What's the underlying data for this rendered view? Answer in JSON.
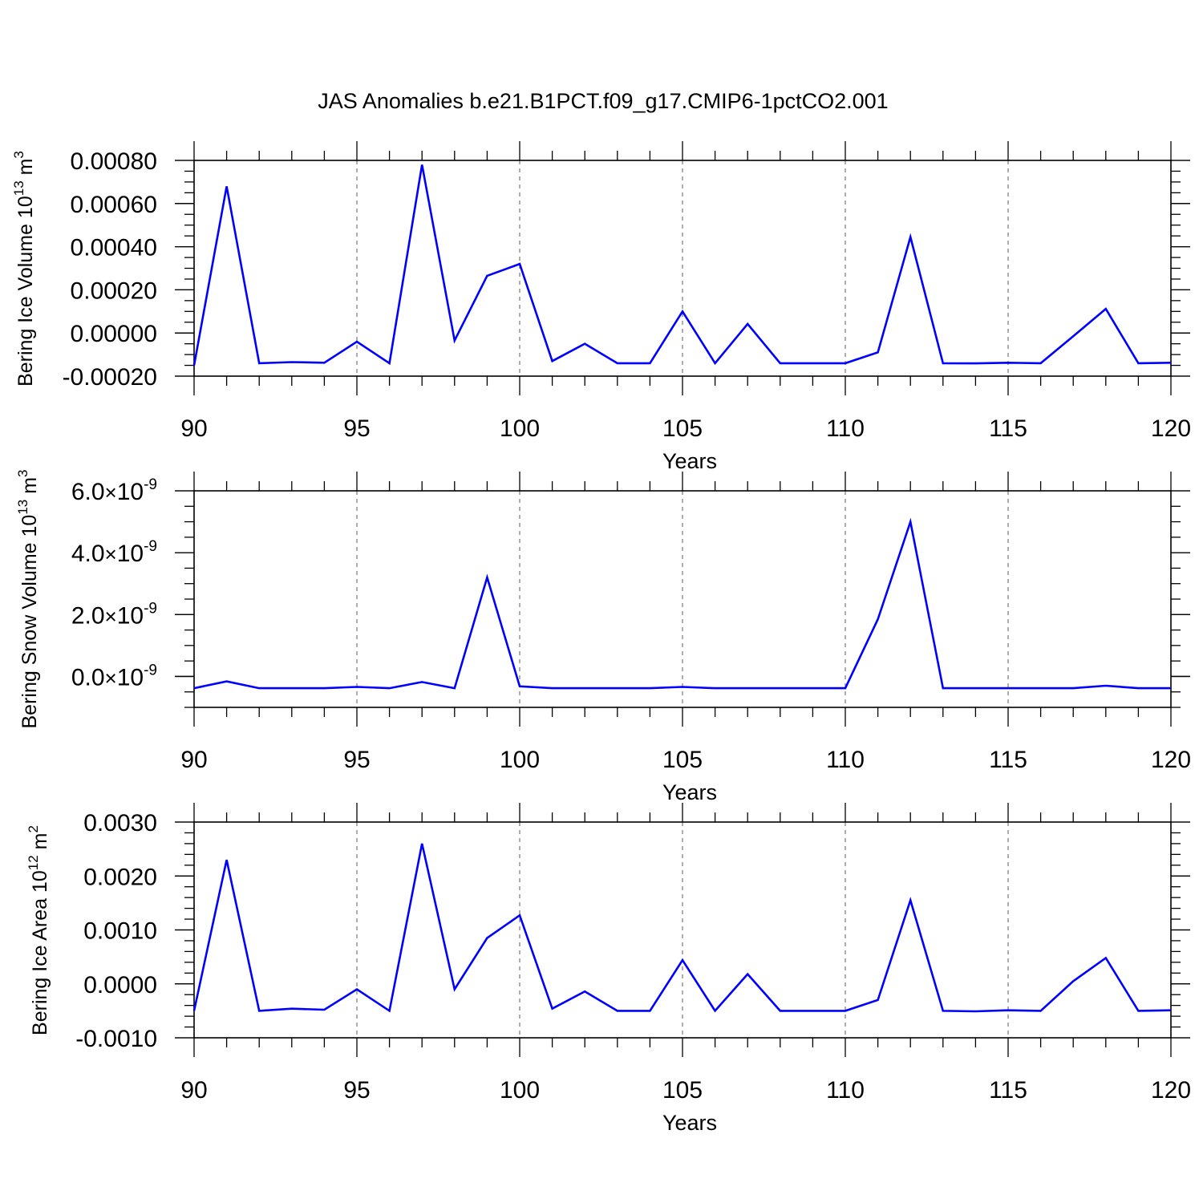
{
  "title": "JAS Anomalies b.e21.B1PCT.f09_g17.CMIP6-1pctCO2.001",
  "line_color": "#0000ff",
  "chart_data": [
    {
      "type": "line",
      "xlabel": "Years",
      "ylabel_main": "Bering Ice Volume 10",
      "ylabel_exp": "13",
      "ylabel_unit": " m",
      "ylabel_unit_exp": "3",
      "xlim": [
        90,
        120
      ],
      "ylim": [
        -0.0002,
        0.0008
      ],
      "x_ticks": [
        90,
        95,
        100,
        105,
        110,
        115,
        120
      ],
      "x_tick_labels": [
        "90",
        "95",
        "100",
        "105",
        "110",
        "115",
        "120"
      ],
      "y_ticks": [
        -0.0002,
        0,
        0.0002,
        0.0004,
        0.0006,
        0.0008
      ],
      "y_tick_labels": [
        "-0.00020",
        "0.00000",
        "0.00020",
        "0.00040",
        "0.00060",
        "0.00080"
      ],
      "y_minor_step": 5e-05,
      "grid": "vertical dashed at major x ticks",
      "x": [
        90,
        91,
        92,
        93,
        94,
        95,
        96,
        97,
        98,
        99,
        100,
        101,
        102,
        103,
        104,
        105,
        106,
        107,
        108,
        109,
        110,
        111,
        112,
        113,
        114,
        115,
        116,
        117,
        118,
        119,
        120
      ],
      "values": [
        -0.00015,
        0.00068,
        -0.00014,
        -0.000135,
        -0.000138,
        -4e-05,
        -0.00014,
        0.00078,
        -3.5e-05,
        0.000265,
        0.00032,
        -0.00013,
        -5e-05,
        -0.00014,
        -0.00014,
        0.0001,
        -0.00014,
        4.2e-05,
        -0.00014,
        -0.00014,
        -0.00014,
        -9e-05,
        0.000445,
        -0.00014,
        -0.000141,
        -0.000138,
        -0.00014,
        -1.5e-05,
        0.000112,
        -0.00014,
        -0.000138
      ]
    },
    {
      "type": "line",
      "xlabel": "Years",
      "ylabel_main": "Bering Snow Volume 10",
      "ylabel_exp": "13",
      "ylabel_unit": " m",
      "ylabel_unit_exp": "3",
      "xlim": [
        90,
        120
      ],
      "ylim": [
        -1e-09,
        6e-09
      ],
      "x_ticks": [
        90,
        95,
        100,
        105,
        110,
        115,
        120
      ],
      "x_tick_labels": [
        "90",
        "95",
        "100",
        "105",
        "110",
        "115",
        "120"
      ],
      "y_ticks": [
        0,
        2e-09,
        4e-09,
        6e-09
      ],
      "y_tick_labels": [
        {
          "mantissa": "0.0",
          "base": "10",
          "exp": "-9"
        },
        {
          "mantissa": "2.0",
          "base": "10",
          "exp": "-9"
        },
        {
          "mantissa": "4.0",
          "base": "10",
          "exp": "-9"
        },
        {
          "mantissa": "6.0",
          "base": "10",
          "exp": "-9"
        }
      ],
      "y_minor_step": 5e-10,
      "grid": "vertical dashed at major x ticks",
      "x": [
        90,
        91,
        92,
        93,
        94,
        95,
        96,
        97,
        98,
        99,
        100,
        101,
        102,
        103,
        104,
        105,
        106,
        107,
        108,
        109,
        110,
        111,
        112,
        113,
        114,
        115,
        116,
        117,
        118,
        119,
        120
      ],
      "values": [
        -3.8e-10,
        -1.6e-10,
        -3.8e-10,
        -3.8e-10,
        -3.8e-10,
        -3.4e-10,
        -3.8e-10,
        -1.8e-10,
        -3.8e-10,
        3.2e-09,
        -3.2e-10,
        -3.8e-10,
        -3.8e-10,
        -3.8e-10,
        -3.8e-10,
        -3.4e-10,
        -3.8e-10,
        -3.8e-10,
        -3.8e-10,
        -3.8e-10,
        -3.8e-10,
        1.85e-09,
        5e-09,
        -3.8e-10,
        -3.8e-10,
        -3.8e-10,
        -3.8e-10,
        -3.8e-10,
        -3e-10,
        -3.8e-10,
        -3.8e-10
      ]
    },
    {
      "type": "line",
      "xlabel": "Years",
      "ylabel_main": "Bering Ice Area 10",
      "ylabel_exp": "12",
      "ylabel_unit": " m",
      "ylabel_unit_exp": "2",
      "xlim": [
        90,
        120
      ],
      "ylim": [
        -0.001,
        0.003
      ],
      "x_ticks": [
        90,
        95,
        100,
        105,
        110,
        115,
        120
      ],
      "x_tick_labels": [
        "90",
        "95",
        "100",
        "105",
        "110",
        "115",
        "120"
      ],
      "y_ticks": [
        -0.001,
        0,
        0.001,
        0.002,
        0.003
      ],
      "y_tick_labels": [
        "-0.0010",
        "0.0000",
        "0.0010",
        "0.0020",
        "0.0030"
      ],
      "y_minor_step": 0.0002,
      "grid": "vertical dashed at major x ticks",
      "x": [
        90,
        91,
        92,
        93,
        94,
        95,
        96,
        97,
        98,
        99,
        100,
        101,
        102,
        103,
        104,
        105,
        106,
        107,
        108,
        109,
        110,
        111,
        112,
        113,
        114,
        115,
        116,
        117,
        118,
        119,
        120
      ],
      "values": [
        -0.0005,
        0.0023,
        -0.0005,
        -0.00046,
        -0.00048,
        -0.0001,
        -0.0005,
        0.0026,
        -0.0001,
        0.00085,
        0.00127,
        -0.00046,
        -0.00014,
        -0.0005,
        -0.0005,
        0.00044,
        -0.0005,
        0.00018,
        -0.0005,
        -0.0005,
        -0.0005,
        -0.0003,
        0.00155,
        -0.0005,
        -0.00051,
        -0.00049,
        -0.0005,
        5e-05,
        0.00048,
        -0.0005,
        -0.00049
      ]
    }
  ]
}
